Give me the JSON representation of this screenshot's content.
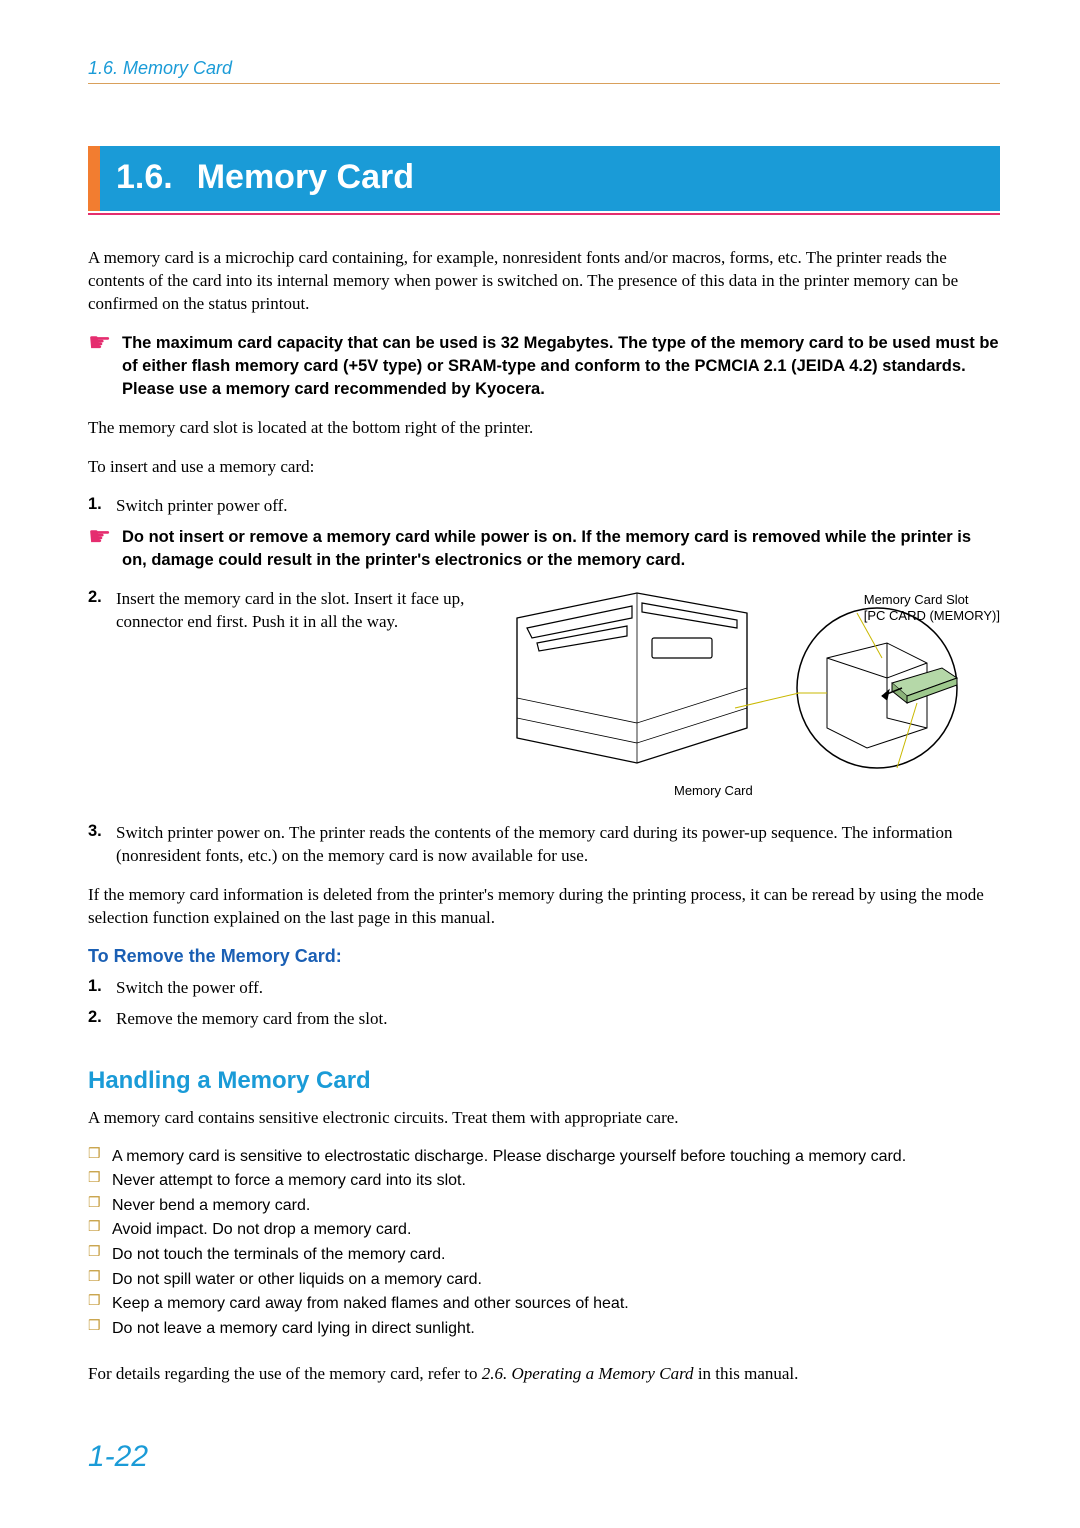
{
  "header": {
    "breadcrumb": "1.6. Memory Card"
  },
  "section": {
    "number": "1.6.",
    "title": "Memory Card"
  },
  "intro": "A memory card is a microchip card containing, for example, nonresident fonts and/or macros, forms, etc. The printer reads the contents of the card into its internal memory when power is switched on. The presence of this data in the printer memory can be confirmed on the status printout.",
  "note1": "The maximum card capacity that can be used is 32 Megabytes. The type of the memory card to be used must be of either flash memory card (+5V type) or SRAM-type and conform to the PCMCIA 2.1 (JEIDA 4.2) standards. Please use a memory card recommended by Kyocera.",
  "body2": "The memory card slot is located at the bottom right of the printer.",
  "body3": "To insert and use a memory card:",
  "steps": {
    "s1": "Switch printer power off.",
    "warn": "Do not insert or remove a memory card while power is on. If the memory card is removed while the printer is on, damage could result in the printer's electronics or the memory card.",
    "s2": "Insert the memory card in the slot. Insert it face up, connector end first. Push it in all the way.",
    "s3": "Switch printer power on. The printer reads the contents of the memory card during its power-up sequence. The information (nonresident fonts, etc.) on the memory card is now available for use."
  },
  "figure": {
    "label_slot": "Memory Card Slot",
    "label_slot2": "[PC CARD (MEMORY)]",
    "label_card": "Memory Card"
  },
  "body4": "If the memory card information is deleted from the printer's memory during the printing process, it can be reread by using the mode selection function explained on the last page in this manual.",
  "remove": {
    "heading": "To Remove the Memory Card:",
    "s1": "Switch the power off.",
    "s2": "Remove the memory card from the slot."
  },
  "handling": {
    "heading": "Handling a Memory Card",
    "intro": "A memory card contains sensitive electronic circuits. Treat them with appropriate care.",
    "items": [
      "A memory card is sensitive to electrostatic discharge. Please discharge yourself before touching a memory card.",
      "Never attempt to force a memory card into its slot.",
      "Never bend a memory card.",
      "Avoid impact. Do not drop a memory card.",
      "Do not touch the terminals of the memory card.",
      "Do not spill water or other liquids on a memory card.",
      "Keep a memory card away from naked flames and other sources of heat.",
      "Do not leave a memory card lying in direct sunlight."
    ]
  },
  "closing_pre": "For details regarding the use of the memory card, refer to ",
  "closing_ref": "2.6. Operating a Memory Card",
  "closing_post": " in this manual.",
  "page_number": "1-22",
  "colors": {
    "accent_blue": "#1a9bd7",
    "accent_orange": "#f27d30",
    "accent_pink": "#e52d6f",
    "header_rule": "#d9a05b",
    "check_gold": "#c49a3a",
    "sub_blue": "#1a5fb4"
  }
}
